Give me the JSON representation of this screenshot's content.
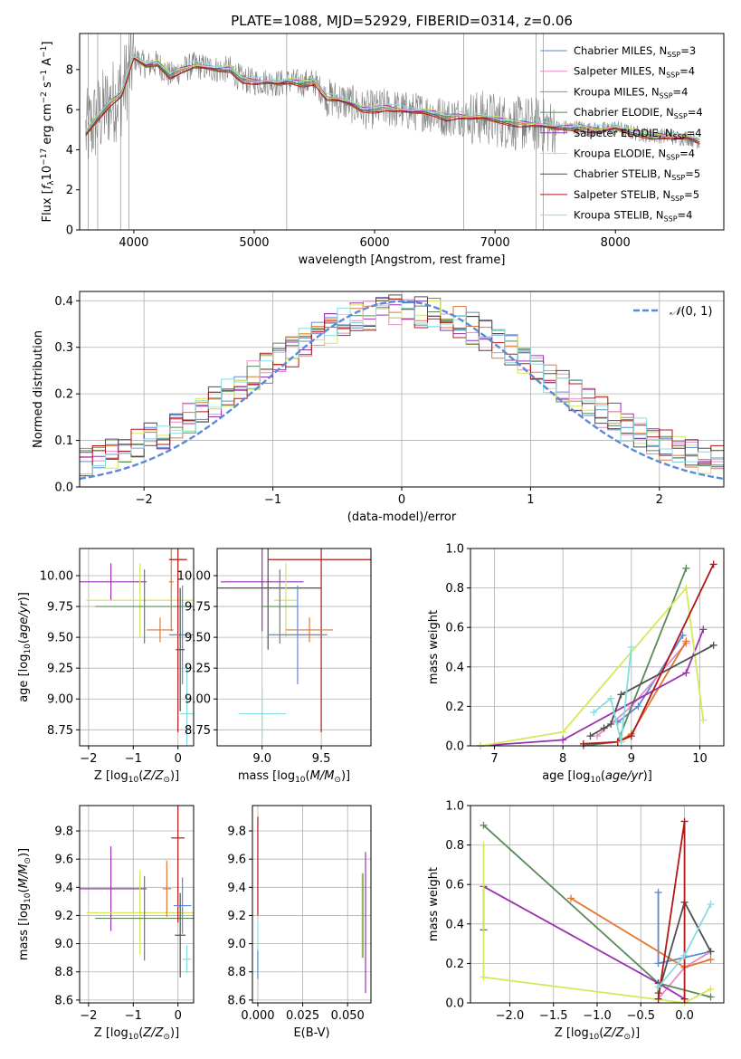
{
  "figure": {
    "title": "PLATE=1088, MJD=52929, FIBERID=0314, z=0.06"
  },
  "chart_data": [
    {
      "id": "spectrum",
      "type": "line",
      "xlabel": "wavelength [Angstrom, rest frame]",
      "ylabel": "Flux [f_λ 10^-17 erg cm^-2 s^-1 A^-1]",
      "xlim": [
        3550,
        8900
      ],
      "ylim": [
        0,
        9.8
      ],
      "xticks": [
        4000,
        5000,
        6000,
        7000,
        8000
      ],
      "yticks": [
        0,
        2,
        4,
        6,
        8
      ],
      "grid": false,
      "legend_position": "top-right",
      "data_color": "#808080",
      "continuum": {
        "x": [
          3600,
          3700,
          3800,
          3900,
          4000,
          4100,
          4200,
          4300,
          4400,
          4500,
          4600,
          4700,
          4800,
          4900,
          5000,
          5100,
          5200,
          5300,
          5400,
          5500,
          5600,
          5700,
          5800,
          5900,
          6000,
          6100,
          6200,
          6300,
          6400,
          6500,
          6600,
          6700,
          6800,
          6900,
          7000,
          7100,
          7200,
          7300,
          7400,
          7500,
          7600,
          7700,
          7800,
          7900,
          8000,
          8100,
          8200,
          8300,
          8400,
          8500,
          8600,
          8700
        ],
        "y": [
          4.8,
          5.6,
          6.3,
          6.8,
          8.6,
          8.2,
          8.3,
          7.7,
          8.0,
          8.2,
          8.1,
          8.0,
          8.0,
          7.5,
          7.4,
          7.4,
          7.3,
          7.4,
          7.3,
          7.4,
          6.6,
          6.5,
          6.3,
          6.0,
          6.0,
          6.1,
          6.0,
          5.9,
          5.9,
          5.8,
          5.6,
          5.7,
          5.6,
          5.6,
          5.5,
          5.4,
          5.3,
          5.3,
          5.2,
          5.1,
          5.1,
          5.1,
          5.0,
          5.0,
          5.1,
          4.9,
          4.8,
          4.7,
          4.7,
          4.6,
          4.6,
          4.4
        ]
      },
      "models": [
        {
          "name": "Chabrier MILES, N_SSP=3",
          "base": "Chabrier MILES, N",
          "sub": "SSP",
          "tail": "=3",
          "color": "#5b8bd6",
          "offset": 0.05
        },
        {
          "name": "Salpeter MILES, N_SSP=4",
          "base": "Salpeter MILES, N",
          "sub": "SSP",
          "tail": "=4",
          "color": "#e58bc8",
          "offset": 0.0
        },
        {
          "name": "Kroupa MILES, N_SSP=4",
          "base": "Kroupa MILES, N",
          "sub": "SSP",
          "tail": "=4",
          "color": "#e07830",
          "offset": -0.05
        },
        {
          "name": "Chabrier ELODIE, N_SSP=4",
          "base": "Chabrier ELODIE, N",
          "sub": "SSP",
          "tail": "=4",
          "color": "#5a8a5a",
          "offset": -0.02
        },
        {
          "name": "Salpeter ELODIE, N_SSP=4",
          "base": "Salpeter ELODIE, N",
          "sub": "SSP",
          "tail": "=4",
          "color": "#9b30b0",
          "offset": 0.08
        },
        {
          "name": "Kroupa ELODIE, N_SSP=4",
          "base": "Kroupa ELODIE, N",
          "sub": "SSP",
          "tail": "=4",
          "color": "#d4e85a",
          "offset": 0.1
        },
        {
          "name": "Chabrier STELIB, N_SSP=5",
          "base": "Chabrier STELIB, N",
          "sub": "SSP",
          "tail": "=5",
          "color": "#505050",
          "offset": -0.08
        },
        {
          "name": "Salpeter STELIB, N_SSP=5",
          "base": "Salpeter STELIB, N",
          "sub": "SSP",
          "tail": "=5",
          "color": "#b01818",
          "offset": -0.1
        },
        {
          "name": "Kroupa STELIB, N_SSP=4",
          "base": "Kroupa STELIB, N",
          "sub": "SSP",
          "tail": "=4",
          "color": "#86dde0",
          "offset": 0.15
        }
      ]
    },
    {
      "id": "residuals",
      "type": "line",
      "xlabel": "(data-model)/error",
      "ylabel": "Normed distribution",
      "xlim": [
        -2.5,
        2.5
      ],
      "ylim": [
        0,
        0.42
      ],
      "xticks": [
        -2,
        -1,
        0,
        1,
        2
      ],
      "yticks": [
        0.0,
        0.1,
        0.2,
        0.3,
        0.4
      ],
      "grid": true,
      "legend": "N(0,1)",
      "legend_position": "top-right",
      "gauss_color": "#5b8bd6",
      "bin_width": 0.1
    },
    {
      "id": "age_vs_Z",
      "type": "scatter",
      "xlabel": "Z [log10(Z/Z⊙)]",
      "ylabel": "age  [log10(age/yr)]",
      "xlim": [
        -2.2,
        0.35
      ],
      "ylim": [
        8.62,
        10.22
      ],
      "xticks": [
        -2,
        -1,
        0
      ],
      "yticks": [
        8.75,
        9.0,
        9.25,
        9.5,
        9.75,
        10.0
      ],
      "grid": true,
      "points": [
        {
          "x": -1.5,
          "y": 9.95,
          "xerr": 0.8,
          "yerr": 0.15,
          "color": "#9b30b0"
        },
        {
          "x": -0.85,
          "y": 9.8,
          "xerr": 1.2,
          "yerr": 0.3,
          "color": "#d4e85a"
        },
        {
          "x": -0.75,
          "y": 9.75,
          "xerr": 1.1,
          "yerr": 0.3,
          "color": "#5a8a5a"
        },
        {
          "x": -0.4,
          "y": 9.56,
          "xerr": 0.3,
          "yerr": 0.1,
          "color": "#e07830"
        },
        {
          "x": -0.15,
          "y": 9.95,
          "xerr": 0.05,
          "yerr": 0.4,
          "color": "#e07830"
        },
        {
          "x": 0.0,
          "y": 10.13,
          "xerr": 0.2,
          "yerr": 1.4,
          "color": "#b01818"
        },
        {
          "x": 0.1,
          "y": 9.52,
          "xerr": 0.3,
          "yerr": 0.4,
          "color": "#5b8bd6"
        },
        {
          "x": 0.05,
          "y": 9.4,
          "xerr": 0.1,
          "yerr": 0.5,
          "color": "#505050"
        },
        {
          "x": 0.2,
          "y": 8.88,
          "xerr": 0.15,
          "yerr": 0.4,
          "color": "#86dde0"
        }
      ]
    },
    {
      "id": "age_vs_mass",
      "type": "scatter",
      "xlabel": "mass [log10(M/M⊙)]",
      "ylabel": "",
      "xlim": [
        8.62,
        9.92
      ],
      "ylim": [
        8.62,
        10.22
      ],
      "xticks": [
        9.0,
        9.5
      ],
      "yticks": [
        8.75,
        9.0,
        9.25,
        9.5,
        9.75,
        10.0
      ],
      "grid": true,
      "points": [
        {
          "x": 9.5,
          "y": 10.13,
          "xerr": 0.45,
          "yerr": 1.4,
          "color": "#b01818"
        },
        {
          "x": 9.0,
          "y": 9.95,
          "xerr": 0.35,
          "yerr": 0.4,
          "color": "#9b30b0"
        },
        {
          "x": 9.05,
          "y": 9.9,
          "xerr": 0.45,
          "yerr": 0.5,
          "color": "#505050"
        },
        {
          "x": 9.2,
          "y": 9.8,
          "xerr": 0.1,
          "yerr": 0.3,
          "color": "#d4e85a"
        },
        {
          "x": 9.15,
          "y": 9.75,
          "xerr": 0.15,
          "yerr": 0.3,
          "color": "#5a8a5a"
        },
        {
          "x": 9.4,
          "y": 9.56,
          "xerr": 0.2,
          "yerr": 0.1,
          "color": "#e07830"
        },
        {
          "x": 9.3,
          "y": 9.52,
          "xerr": 0.25,
          "yerr": 0.4,
          "color": "#5b8bd6"
        },
        {
          "x": 9.0,
          "y": 8.88,
          "xerr": 0.2,
          "yerr": 0.2,
          "color": "#86dde0"
        }
      ]
    },
    {
      "id": "weight_vs_age",
      "type": "line",
      "xlabel": "age  [log10(age/yr)]",
      "ylabel": "mass weight",
      "xlim": [
        6.65,
        10.35
      ],
      "ylim": [
        0,
        1.0
      ],
      "xticks": [
        7,
        8,
        9,
        10
      ],
      "yticks": [
        0.0,
        0.2,
        0.4,
        0.6,
        0.8,
        1.0
      ],
      "grid": true,
      "series": [
        {
          "color": "#5b8bd6",
          "x": [
            8.8,
            9.1,
            9.75
          ],
          "y": [
            0.12,
            0.2,
            0.56
          ]
        },
        {
          "color": "#e58bc8",
          "x": [
            8.5,
            9.0,
            9.8
          ],
          "y": [
            0.05,
            0.2,
            0.52
          ]
        },
        {
          "color": "#e07830",
          "x": [
            8.8,
            9.0,
            9.8
          ],
          "y": [
            0.02,
            0.06,
            0.53
          ]
        },
        {
          "color": "#5a8a5a",
          "x": [
            8.3,
            8.8,
            9.8
          ],
          "y": [
            0.0,
            0.02,
            0.9
          ]
        },
        {
          "color": "#9b30b0",
          "x": [
            6.8,
            8.0,
            9.8,
            10.05
          ],
          "y": [
            0.0,
            0.03,
            0.37,
            0.59
          ]
        },
        {
          "color": "#d4e85a",
          "x": [
            6.8,
            8.0,
            9.8,
            10.05
          ],
          "y": [
            0.0,
            0.07,
            0.8,
            0.13
          ]
        },
        {
          "color": "#505050",
          "x": [
            8.4,
            8.6,
            8.7,
            8.85,
            10.2
          ],
          "y": [
            0.05,
            0.09,
            0.11,
            0.26,
            0.51
          ]
        },
        {
          "color": "#b01818",
          "x": [
            8.3,
            8.8,
            9.0,
            10.2
          ],
          "y": [
            0.01,
            0.02,
            0.05,
            0.92
          ]
        },
        {
          "color": "#86dde0",
          "x": [
            8.45,
            8.7,
            8.85,
            9.0
          ],
          "y": [
            0.17,
            0.24,
            0.02,
            0.5
          ]
        }
      ]
    },
    {
      "id": "mass_vs_Z",
      "type": "scatter",
      "xlabel": "Z [log10(Z/Z⊙)]",
      "ylabel": "mass [log10(M/M⊙)]",
      "xlim": [
        -2.2,
        0.35
      ],
      "ylim": [
        8.58,
        9.98
      ],
      "xticks": [
        -2,
        -1,
        0
      ],
      "yticks": [
        8.6,
        8.8,
        9.0,
        9.2,
        9.4,
        9.6,
        9.8
      ],
      "grid": true,
      "points": [
        {
          "x": -1.5,
          "y": 9.39,
          "xerr": 0.8,
          "yerr": 0.3,
          "color": "#9b30b0"
        },
        {
          "x": -0.85,
          "y": 9.22,
          "xerr": 1.2,
          "yerr": 0.3,
          "color": "#d4e85a"
        },
        {
          "x": -0.75,
          "y": 9.18,
          "xerr": 1.1,
          "yerr": 0.3,
          "color": "#5a8a5a"
        },
        {
          "x": -0.25,
          "y": 9.39,
          "xerr": 0.1,
          "yerr": 0.2,
          "color": "#e07830"
        },
        {
          "x": 0.0,
          "y": 9.75,
          "xerr": 0.15,
          "yerr": 0.6,
          "color": "#b01818"
        },
        {
          "x": 0.1,
          "y": 9.27,
          "xerr": 0.2,
          "yerr": 0.2,
          "color": "#5b8bd6"
        },
        {
          "x": 0.05,
          "y": 9.06,
          "xerr": 0.12,
          "yerr": 0.3,
          "color": "#505050"
        },
        {
          "x": 0.2,
          "y": 8.89,
          "xerr": 0.1,
          "yerr": 0.1,
          "color": "#86dde0"
        }
      ]
    },
    {
      "id": "mass_vs_ebv",
      "type": "scatter",
      "xlabel": "E(B-V)",
      "ylabel": "",
      "xlim": [
        -0.003,
        0.063
      ],
      "ylim": [
        8.58,
        9.98
      ],
      "xticks": [
        0.0,
        0.025,
        0.05
      ],
      "tick_labels": [
        "0.000",
        "0.025",
        "0.050"
      ],
      "yticks": [
        8.6,
        8.8,
        9.0,
        9.2,
        9.4,
        9.6,
        9.8
      ],
      "grid": true,
      "points": [
        {
          "x": 0.0,
          "y": 9.55,
          "xerr": 0.0002,
          "yerr": 0.35,
          "color": "#b01818"
        },
        {
          "x": 0.0,
          "y": 8.95,
          "xerr": 0.0002,
          "yerr": 0.2,
          "color": "#86dde0"
        },
        {
          "x": 0.0,
          "y": 8.85,
          "xerr": 0.0002,
          "yerr": 0.1,
          "color": "#5b8bd6"
        },
        {
          "x": 0.058,
          "y": 9.2,
          "xerr": 0.0002,
          "yerr": 0.3,
          "color": "#d4e85a"
        },
        {
          "x": 0.0585,
          "y": 9.2,
          "xerr": 0.0002,
          "yerr": 0.3,
          "color": "#5a8a5a"
        },
        {
          "x": 0.06,
          "y": 9.15,
          "xerr": 0.0002,
          "yerr": 0.5,
          "color": "#9b30b0"
        }
      ]
    },
    {
      "id": "weight_vs_Z",
      "type": "line",
      "xlabel": "Z [log10(Z/Z⊙)]",
      "ylabel": "mass weight",
      "xlim": [
        -2.45,
        0.45
      ],
      "ylim": [
        0,
        1.0
      ],
      "xticks": [
        -2.0,
        -1.5,
        -1.0,
        -0.5,
        0.0
      ],
      "yticks": [
        0.0,
        0.2,
        0.4,
        0.6,
        0.8,
        1.0
      ],
      "grid": true,
      "series": [
        {
          "color": "#5b8bd6",
          "x": [
            -0.3,
            -0.3,
            0.3
          ],
          "y": [
            0.56,
            0.2,
            0.26
          ]
        },
        {
          "color": "#e58bc8",
          "x": [
            -0.3,
            0.0,
            0.3
          ],
          "y": [
            0.02,
            0.18,
            0.26
          ]
        },
        {
          "color": "#e07830",
          "x": [
            -1.3,
            0.0,
            0.3
          ],
          "y": [
            0.53,
            0.18,
            0.22
          ]
        },
        {
          "color": "#5a8a5a",
          "x": [
            -2.3,
            -0.3,
            0.3
          ],
          "y": [
            0.9,
            0.1,
            0.03
          ]
        },
        {
          "color": "#9b30b0",
          "x": [
            -2.3,
            -2.3,
            -0.3,
            0.0
          ],
          "y": [
            0.37,
            0.59,
            0.1,
            0.02
          ]
        },
        {
          "color": "#d4e85a",
          "x": [
            -2.3,
            -2.3,
            0.0,
            0.3
          ],
          "y": [
            0.8,
            0.13,
            0.0,
            0.07
          ]
        },
        {
          "color": "#505050",
          "x": [
            -0.3,
            -0.3,
            0.0,
            0.3
          ],
          "y": [
            0.1,
            0.05,
            0.51,
            0.26
          ]
        },
        {
          "color": "#b01818",
          "x": [
            -0.3,
            0.0,
            0.0,
            0.0
          ],
          "y": [
            0.02,
            0.92,
            0.02,
            0.02
          ]
        },
        {
          "color": "#86dde0",
          "x": [
            -0.3,
            0.0,
            0.3
          ],
          "y": [
            0.08,
            0.24,
            0.5
          ]
        }
      ]
    }
  ]
}
